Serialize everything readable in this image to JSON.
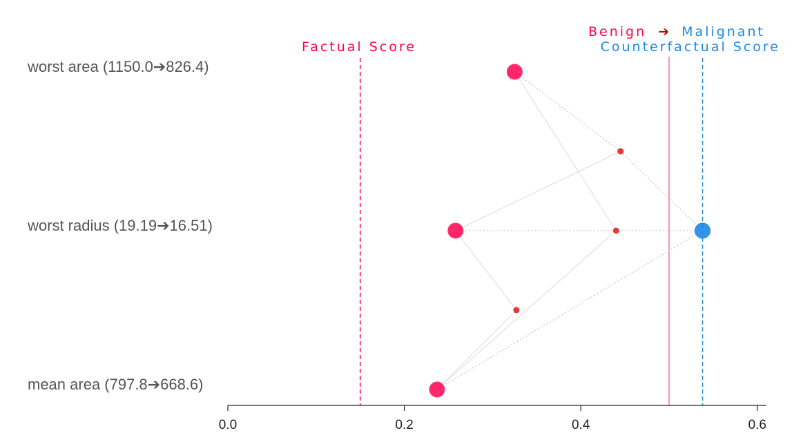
{
  "chart_data": {
    "type": "scatter",
    "title": "",
    "xlabel": "",
    "ylabel": "",
    "xlim": [
      0.0,
      0.6
    ],
    "x_ticks": [
      0.0,
      0.2,
      0.4,
      0.6
    ],
    "x_tick_labels": [
      "0.0",
      "0.2",
      "0.4",
      "0.6"
    ],
    "features": [
      "worst area (1150.0➔826.4)",
      "worst radius (19.19➔16.51)",
      "mean area (797.8➔668.6)"
    ],
    "factual_points": [
      {
        "feature": "worst area (1150.0➔826.4)",
        "x": 0.325
      },
      {
        "feature": "worst radius (19.19➔16.51)",
        "x": 0.258
      },
      {
        "feature": "mean area (797.8➔668.6)",
        "x": 0.237
      }
    ],
    "intermediate_points": [
      {
        "row": 0.5,
        "x": 0.445
      },
      {
        "row": 1.0,
        "x": 0.44
      },
      {
        "row": 1.5,
        "x": 0.327
      }
    ],
    "counterfactual_point": {
      "feature": "worst radius (19.19➔16.51)",
      "x": 0.538
    },
    "factual_score": {
      "label": "Factual Score",
      "x": 0.15
    },
    "counterfactual_score": {
      "label": "Counterfactual Score",
      "x": 0.538
    },
    "threshold": {
      "x": 0.5
    },
    "class_from": "Benign",
    "class_arrow": "➔",
    "class_to": "Malignant",
    "colors": {
      "factual": "#ff0051",
      "counterfactual": "#1e88e5",
      "intermediate": "#e53935",
      "threshold": "#ff4d6d",
      "class_arrow": "#c00000",
      "grid_line": "#e6e6e6",
      "axis": "#222222",
      "label": "#555555"
    }
  }
}
